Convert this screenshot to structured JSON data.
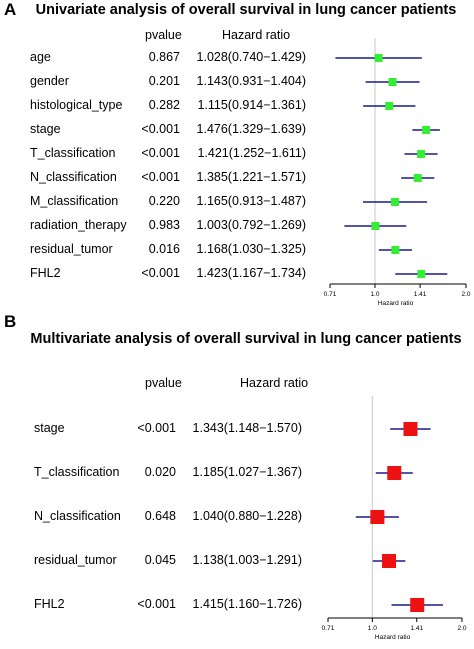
{
  "panelA": {
    "letter": "A",
    "title": "Univariate analysis of overall survival in lung cancer patients",
    "col_pvalue": "pvalue",
    "col_hr": "Hazard ratio"
  },
  "panelB": {
    "letter": "B",
    "title": "Multivariate analysis of overall survival in lung cancer patients",
    "col_pvalue": "pvalue",
    "col_hr": "Hazard ratio"
  },
  "chart_data": [
    {
      "type": "forest",
      "title": "Univariate analysis of overall survival in lung cancer patients",
      "xlabel": "Hazard ratio",
      "x_scale": "log",
      "xlim": [
        0.71,
        2.0
      ],
      "x_ticks": [
        "0.71",
        "1.0",
        "1.41",
        "2.0"
      ],
      "x_tick_values": [
        0.71,
        1.0,
        1.41,
        2.0
      ],
      "reference_line": 1.0,
      "marker_color": "#33ee33",
      "ci_color": "#1a1a8c",
      "rows": [
        {
          "label": "age",
          "pvalue": "0.867",
          "hr_text": "1.028(0.740−1.429)",
          "hr": 1.028,
          "lower": 0.74,
          "upper": 1.429
        },
        {
          "label": "gender",
          "pvalue": "0.201",
          "hr_text": "1.143(0.931−1.404)",
          "hr": 1.143,
          "lower": 0.931,
          "upper": 1.404
        },
        {
          "label": "histological_type",
          "pvalue": "0.282",
          "hr_text": "1.115(0.914−1.361)",
          "hr": 1.115,
          "lower": 0.914,
          "upper": 1.361
        },
        {
          "label": "stage",
          "pvalue": "<0.001",
          "hr_text": "1.476(1.329−1.639)",
          "hr": 1.476,
          "lower": 1.329,
          "upper": 1.639
        },
        {
          "label": "T_classification",
          "pvalue": "<0.001",
          "hr_text": "1.421(1.252−1.611)",
          "hr": 1.421,
          "lower": 1.252,
          "upper": 1.611
        },
        {
          "label": "N_classification",
          "pvalue": "<0.001",
          "hr_text": "1.385(1.221−1.571)",
          "hr": 1.385,
          "lower": 1.221,
          "upper": 1.571
        },
        {
          "label": "M_classification",
          "pvalue": "0.220",
          "hr_text": "1.165(0.913−1.487)",
          "hr": 1.165,
          "lower": 0.913,
          "upper": 1.487
        },
        {
          "label": "radiation_therapy",
          "pvalue": "0.983",
          "hr_text": "1.003(0.792−1.269)",
          "hr": 1.003,
          "lower": 0.792,
          "upper": 1.269
        },
        {
          "label": "residual_tumor",
          "pvalue": "0.016",
          "hr_text": "1.168(1.030−1.325)",
          "hr": 1.168,
          "lower": 1.03,
          "upper": 1.325
        },
        {
          "label": "FHL2",
          "pvalue": "<0.001",
          "hr_text": "1.423(1.167−1.734)",
          "hr": 1.423,
          "lower": 1.167,
          "upper": 1.734
        }
      ]
    },
    {
      "type": "forest",
      "title": "Multivariate analysis of overall survival in lung cancer patients",
      "xlabel": "Hazard ratio",
      "x_scale": "log",
      "xlim": [
        0.71,
        2.0
      ],
      "x_ticks": [
        "0.71",
        "1.0",
        "1.41",
        "2.0"
      ],
      "x_tick_values": [
        0.71,
        1.0,
        1.41,
        2.0
      ],
      "reference_line": 1.0,
      "marker_color": "#ee1111",
      "ci_color": "#1a1a8c",
      "rows": [
        {
          "label": "stage",
          "pvalue": "<0.001",
          "hr_text": "1.343(1.148−1.570)",
          "hr": 1.343,
          "lower": 1.148,
          "upper": 1.57
        },
        {
          "label": "T_classification",
          "pvalue": "0.020",
          "hr_text": "1.185(1.027−1.367)",
          "hr": 1.185,
          "lower": 1.027,
          "upper": 1.367
        },
        {
          "label": "N_classification",
          "pvalue": "0.648",
          "hr_text": "1.040(0.880−1.228)",
          "hr": 1.04,
          "lower": 0.88,
          "upper": 1.228
        },
        {
          "label": "residual_tumor",
          "pvalue": "0.045",
          "hr_text": "1.138(1.003−1.291)",
          "hr": 1.138,
          "lower": 1.003,
          "upper": 1.291
        },
        {
          "label": "FHL2",
          "pvalue": "<0.001",
          "hr_text": "1.415(1.160−1.726)",
          "hr": 1.415,
          "lower": 1.16,
          "upper": 1.726
        }
      ]
    }
  ]
}
